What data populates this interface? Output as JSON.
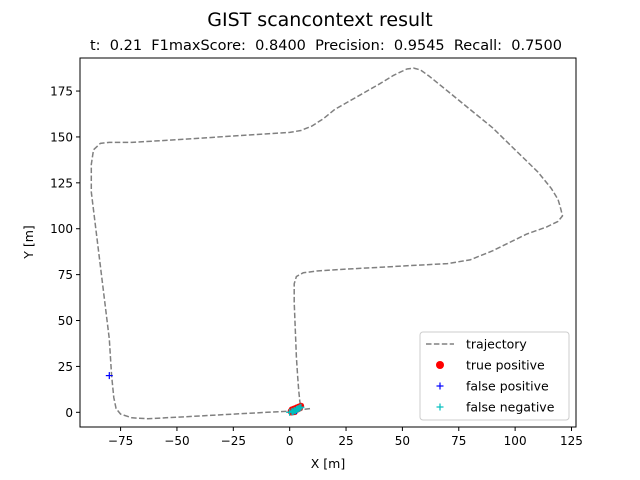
{
  "chart_data": {
    "type": "line",
    "title": "GIST scancontext result",
    "subtitle": "t:  0.21  F1maxScore:  0.8400  Precision:  0.9545  Recall:  0.7500",
    "xlabel": "X [m]",
    "ylabel": "Y [m]",
    "xlim": [
      -93,
      127
    ],
    "ylim": [
      -8,
      193
    ],
    "xticks": [
      -75,
      -50,
      -25,
      0,
      25,
      50,
      75,
      100,
      125
    ],
    "yticks": [
      0,
      25,
      50,
      75,
      100,
      125,
      150,
      175
    ],
    "xtick_labels": [
      "−75",
      "−50",
      "−25",
      "0",
      "25",
      "50",
      "75",
      "100",
      "125"
    ],
    "ytick_labels": [
      "0",
      "25",
      "50",
      "75",
      "100",
      "125",
      "150",
      "175"
    ],
    "grid": false,
    "legend_position": "lower-right",
    "series": [
      {
        "name": "trajectory",
        "style": "dashed-line",
        "color": "#808080",
        "x": [
          9,
          5,
          3,
          0,
          -2,
          -10,
          -25,
          -40,
          -55,
          -63,
          -70,
          -75,
          -77,
          -78,
          -79,
          -80,
          -82,
          -84,
          -86,
          -88,
          -88,
          -87,
          -84,
          -80,
          -70,
          -50,
          -25,
          0,
          5,
          10,
          15,
          20,
          30,
          40,
          46,
          52,
          55,
          58,
          62,
          70,
          80,
          90,
          100,
          110,
          116,
          119,
          120,
          121,
          119,
          114,
          105,
          90,
          80,
          70,
          55,
          40,
          25,
          12,
          6,
          3,
          2,
          2,
          2.5,
          3,
          3.5,
          4,
          4.5,
          5,
          5.5
        ],
        "y": [
          2,
          1.5,
          1,
          0.5,
          0.5,
          0,
          -1,
          -2,
          -3,
          -3.5,
          -3,
          -1,
          2,
          8,
          20,
          40,
          60,
          80,
          100,
          120,
          135,
          143,
          146.5,
          147,
          147,
          148.5,
          150.5,
          152.5,
          153.5,
          156,
          160,
          165,
          172,
          179,
          183.5,
          187,
          187.5,
          186.5,
          183,
          175,
          165,
          155,
          143,
          131,
          122,
          116,
          112,
          107,
          104,
          101,
          97,
          88,
          83,
          81,
          80,
          79,
          78,
          77,
          76,
          74,
          70,
          60,
          45,
          30,
          20,
          12,
          6,
          3,
          1
        ]
      },
      {
        "name": "true positive",
        "style": "dot",
        "color": "#ff0000",
        "x": [
          0.5,
          1.5,
          2.5,
          3.5,
          4.5,
          1,
          2,
          3,
          4,
          5,
          0.8,
          2.2
        ],
        "y": [
          0.5,
          0.8,
          1.2,
          1.6,
          2.2,
          1.5,
          2.0,
          2.5,
          3.0,
          3.5,
          0,
          0.2
        ]
      },
      {
        "name": "false positive",
        "style": "plus",
        "color": "#0000ff",
        "x": [
          -80,
          3
        ],
        "y": [
          20,
          1
        ]
      },
      {
        "name": "false negative",
        "style": "plus",
        "color": "#00bfbf",
        "x": [
          0,
          1,
          2,
          3,
          4,
          5,
          1.5,
          2.5,
          3.5,
          4.5
        ],
        "y": [
          0,
          0.5,
          1.0,
          1.5,
          2.0,
          2.8,
          0.2,
          0.8,
          1.8,
          2.4
        ]
      }
    ]
  }
}
